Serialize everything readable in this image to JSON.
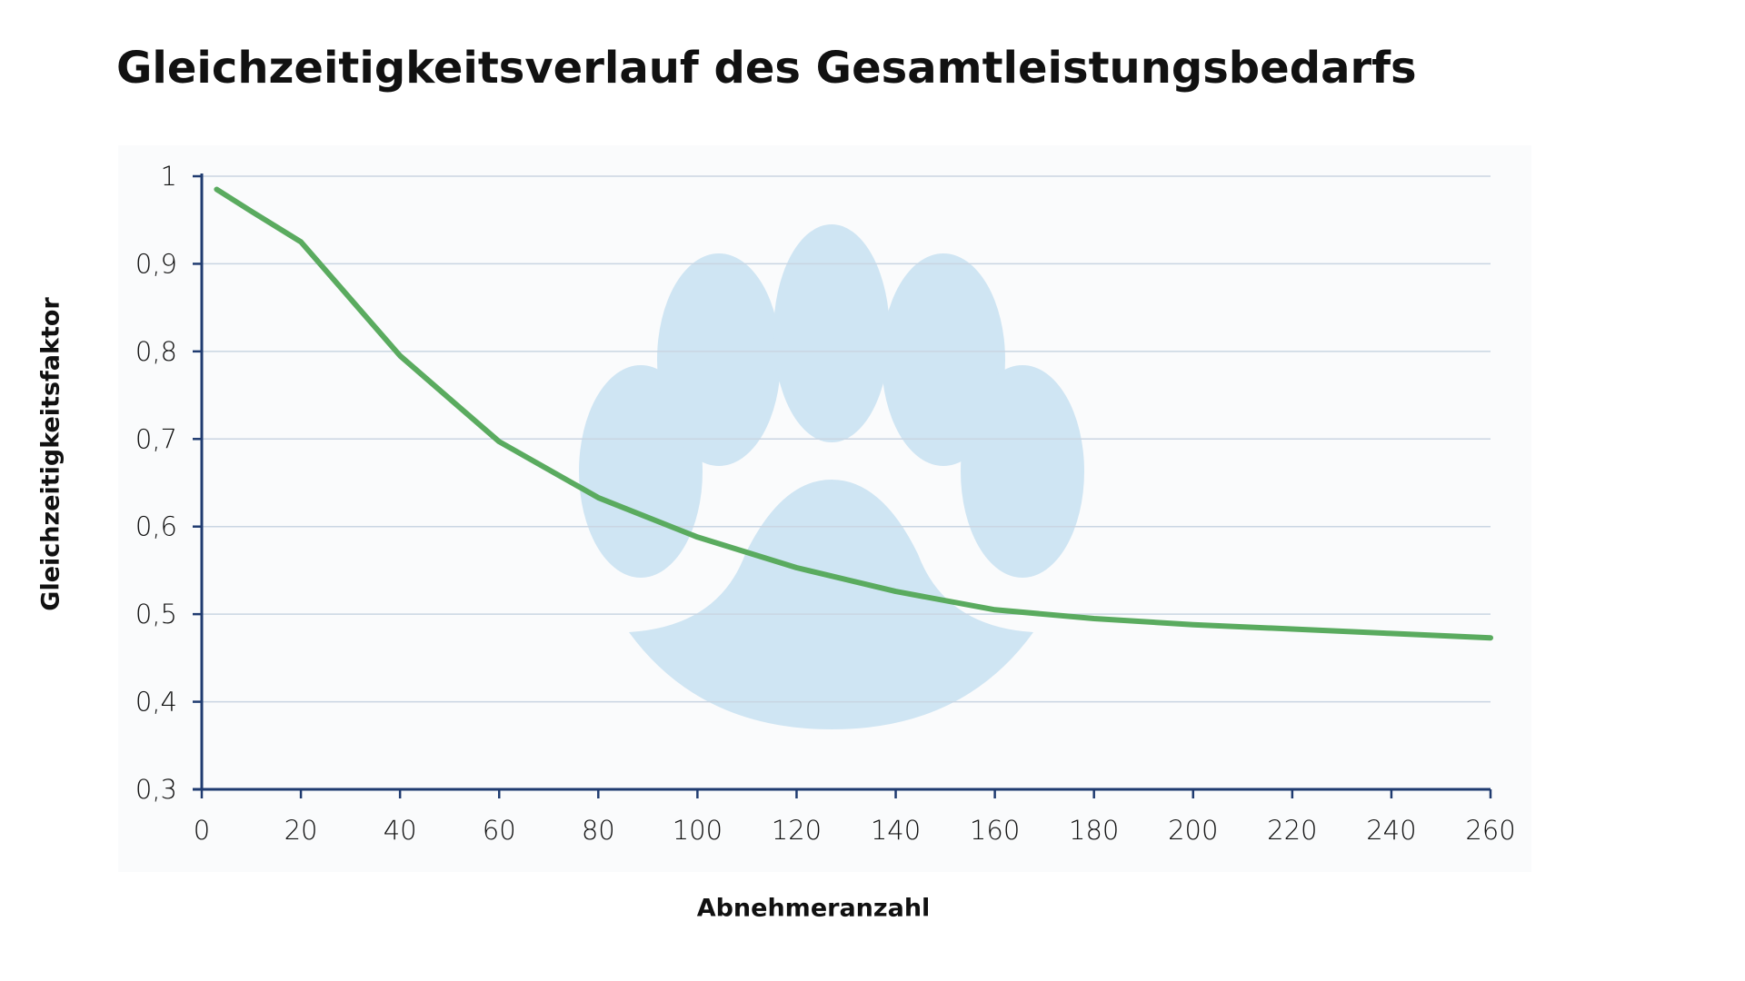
{
  "chart_data": {
    "type": "line",
    "title": "Gleichzeitigkeitsverlauf des Gesamtleistungsbedarfs",
    "x_label": "Abnehmeranzahl",
    "y_label": "Gleichzeitigkeitsfaktor",
    "x": [
      3,
      10,
      20,
      40,
      60,
      80,
      100,
      120,
      140,
      160,
      180,
      200,
      220,
      240,
      260
    ],
    "values": [
      0.985,
      0.96,
      0.925,
      0.795,
      0.697,
      0.633,
      0.588,
      0.553,
      0.526,
      0.505,
      0.495,
      0.488,
      0.483,
      0.478,
      0.473
    ],
    "color": "#5aab5f",
    "xlim": [
      0,
      260
    ],
    "xticks": [
      0,
      20,
      40,
      60,
      80,
      100,
      120,
      140,
      160,
      180,
      200,
      220,
      240,
      260
    ],
    "ylim": [
      0.3,
      1
    ],
    "yticks": [
      {
        "value": 0.3,
        "label": "0,3"
      },
      {
        "value": 0.4,
        "label": "0,4"
      },
      {
        "value": 0.5,
        "label": "0,5"
      },
      {
        "value": 0.6,
        "label": "0,6"
      },
      {
        "value": 0.7,
        "label": "0,7"
      },
      {
        "value": 0.8,
        "label": "0,8"
      },
      {
        "value": 0.9,
        "label": "0,9"
      },
      1
    ],
    "grid": true
  }
}
